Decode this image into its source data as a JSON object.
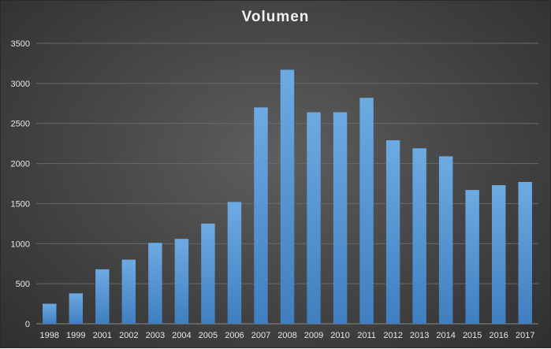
{
  "chart_data": {
    "type": "bar",
    "title": "Volumen",
    "categories": [
      "1998",
      "1999",
      "2001",
      "2002",
      "2003",
      "2004",
      "2005",
      "2006",
      "2007",
      "2008",
      "2009",
      "2010",
      "2011",
      "2012",
      "2013",
      "2014",
      "2015",
      "2016",
      "2017"
    ],
    "values": [
      250,
      380,
      680,
      800,
      1010,
      1060,
      1250,
      1520,
      2700,
      3170,
      2640,
      2640,
      2820,
      2290,
      2190,
      2090,
      1670,
      1730,
      1770
    ],
    "ylim": [
      0,
      3500
    ],
    "yticks": [
      0,
      500,
      1000,
      1500,
      2000,
      2500,
      3000,
      3500
    ],
    "xlabel": "",
    "ylabel": "",
    "grid": true,
    "bar_color": "#5b9bd5"
  }
}
